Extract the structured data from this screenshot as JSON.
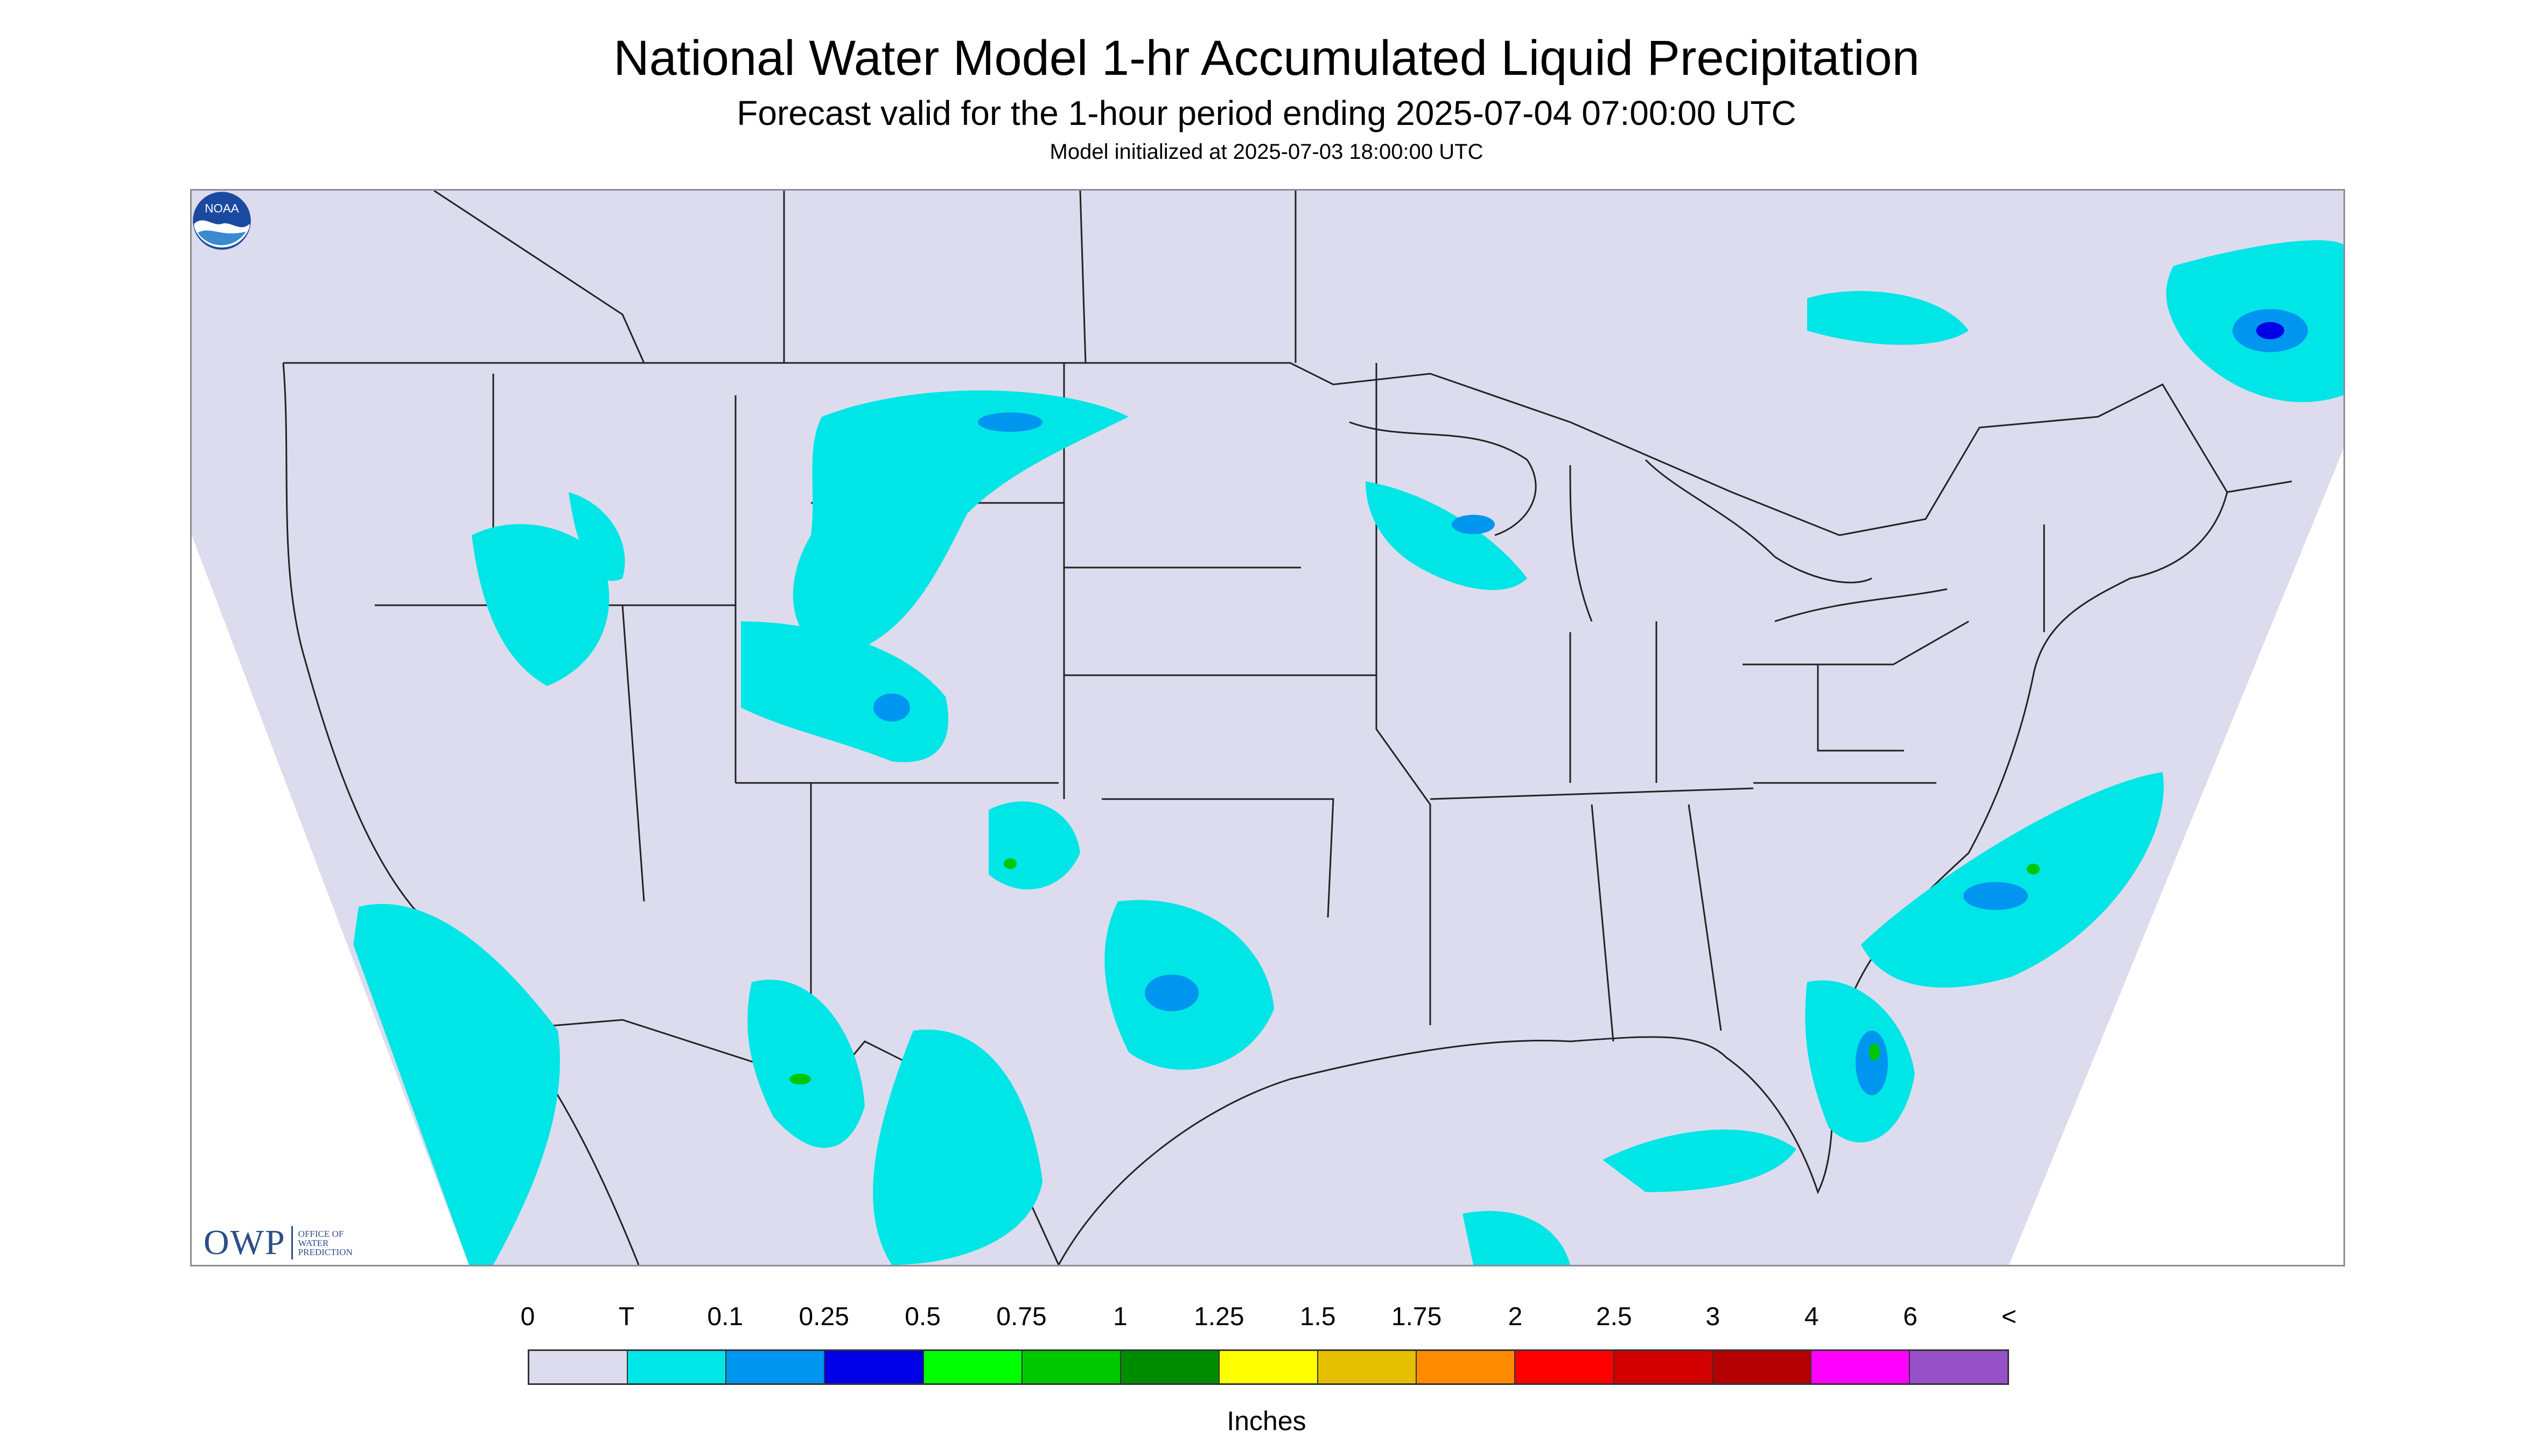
{
  "title": "National Water Model 1-hr Accumulated Liquid Precipitation",
  "subtitle": "Forecast valid for the 1-hour period ending 2025-07-04 07:00:00 UTC",
  "init_line": "Model initialized at 2025-07-03 18:00:00 UTC",
  "map": {
    "background_color": "#dcdcee",
    "outline_color": "#222222",
    "owp_logo": {
      "mark": "OWP",
      "text_lines": [
        "OFFICE OF",
        "WATER",
        "PREDICTION"
      ]
    },
    "noaa_logo": {
      "text": "NOAA"
    }
  },
  "legend": {
    "tick_labels": [
      "0",
      "T",
      "0.1",
      "0.25",
      "0.5",
      "0.75",
      "1",
      "1.25",
      "1.5",
      "1.75",
      "2",
      "2.5",
      "3",
      "4",
      "6",
      "<"
    ],
    "colors": [
      "#dcdcee",
      "#00e5e5",
      "#0096f0",
      "#0000e6",
      "#00ff00",
      "#00c800",
      "#008c00",
      "#ffff00",
      "#e5c000",
      "#ff8c00",
      "#ff0000",
      "#d20000",
      "#b40000",
      "#ff00ff",
      "#9650c8"
    ],
    "units": "Inches"
  }
}
